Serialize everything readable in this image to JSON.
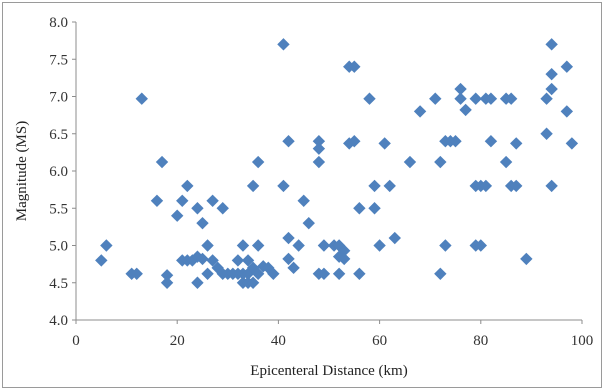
{
  "chart_data": {
    "type": "scatter",
    "title": "",
    "xlabel": "Epicenteral Distance (km)",
    "ylabel": "Magnitude (MS)",
    "xlim": [
      0,
      100
    ],
    "ylim": [
      4.0,
      8.0
    ],
    "x_ticks": [
      "0",
      "20",
      "40",
      "60",
      "80",
      "100"
    ],
    "y_ticks": [
      "4.0",
      "4.5",
      "5.0",
      "5.5",
      "6.0",
      "6.5",
      "7.0",
      "7.5",
      "8.0"
    ],
    "grid": false,
    "legend": "none",
    "marker": "diamond",
    "color": "#4F81BD",
    "series": [
      {
        "points": [
          [
            5,
            4.8
          ],
          [
            6,
            5.0
          ],
          [
            11,
            4.62
          ],
          [
            12,
            4.62
          ],
          [
            13,
            6.97
          ],
          [
            16,
            5.6
          ],
          [
            17,
            6.12
          ],
          [
            18,
            4.6
          ],
          [
            18,
            4.5
          ],
          [
            20,
            5.4
          ],
          [
            21,
            5.6
          ],
          [
            21,
            4.8
          ],
          [
            22,
            5.8
          ],
          [
            22,
            4.8
          ],
          [
            23,
            4.8
          ],
          [
            24,
            5.5
          ],
          [
            24,
            4.5
          ],
          [
            24,
            4.85
          ],
          [
            25,
            5.3
          ],
          [
            25,
            4.82
          ],
          [
            26,
            5.0
          ],
          [
            26,
            4.62
          ],
          [
            27,
            5.6
          ],
          [
            27,
            4.8
          ],
          [
            28,
            4.7
          ],
          [
            29,
            5.5
          ],
          [
            29,
            4.62
          ],
          [
            30,
            4.62
          ],
          [
            31,
            4.62
          ],
          [
            32,
            4.8
          ],
          [
            32,
            4.62
          ],
          [
            33,
            5.0
          ],
          [
            33,
            4.62
          ],
          [
            33,
            4.5
          ],
          [
            34,
            4.5
          ],
          [
            34,
            4.8
          ],
          [
            34,
            4.62
          ],
          [
            35,
            5.8
          ],
          [
            35,
            4.5
          ],
          [
            35,
            4.7
          ],
          [
            36,
            6.12
          ],
          [
            36,
            5.0
          ],
          [
            36,
            4.62
          ],
          [
            37,
            4.72
          ],
          [
            38,
            4.7
          ],
          [
            39,
            4.62
          ],
          [
            41,
            7.7
          ],
          [
            41,
            5.8
          ],
          [
            42,
            6.4
          ],
          [
            42,
            5.1
          ],
          [
            42,
            4.82
          ],
          [
            43,
            4.7
          ],
          [
            44,
            5.0
          ],
          [
            45,
            5.6
          ],
          [
            46,
            5.3
          ],
          [
            48,
            6.4
          ],
          [
            48,
            6.3
          ],
          [
            48,
            6.12
          ],
          [
            48,
            4.62
          ],
          [
            49,
            5.0
          ],
          [
            49,
            4.62
          ],
          [
            51,
            5.0
          ],
          [
            52,
            5.0
          ],
          [
            52,
            4.85
          ],
          [
            52,
            4.62
          ],
          [
            53,
            4.93
          ],
          [
            53,
            4.82
          ],
          [
            54,
            7.4
          ],
          [
            54,
            6.37
          ],
          [
            55,
            7.4
          ],
          [
            55,
            6.4
          ],
          [
            56,
            5.5
          ],
          [
            56,
            4.62
          ],
          [
            58,
            6.97
          ],
          [
            59,
            5.8
          ],
          [
            59,
            5.5
          ],
          [
            60,
            5.0
          ],
          [
            61,
            6.37
          ],
          [
            62,
            5.8
          ],
          [
            63,
            5.1
          ],
          [
            66,
            6.12
          ],
          [
            68,
            6.8
          ],
          [
            71,
            6.97
          ],
          [
            72,
            6.12
          ],
          [
            72,
            4.62
          ],
          [
            73,
            6.4
          ],
          [
            73,
            5.0
          ],
          [
            74,
            6.4
          ],
          [
            75,
            6.4
          ],
          [
            76,
            7.1
          ],
          [
            76,
            6.97
          ],
          [
            77,
            6.82
          ],
          [
            79,
            6.97
          ],
          [
            79,
            5.8
          ],
          [
            79,
            5.0
          ],
          [
            80,
            5.8
          ],
          [
            80,
            5.0
          ],
          [
            81,
            6.97
          ],
          [
            81,
            5.8
          ],
          [
            82,
            6.97
          ],
          [
            82,
            6.4
          ],
          [
            85,
            6.97
          ],
          [
            85,
            6.12
          ],
          [
            86,
            6.97
          ],
          [
            86,
            5.8
          ],
          [
            87,
            6.37
          ],
          [
            87,
            5.8
          ],
          [
            89,
            4.82
          ],
          [
            93,
            6.97
          ],
          [
            93,
            6.5
          ],
          [
            94,
            7.7
          ],
          [
            94,
            7.3
          ],
          [
            94,
            7.1
          ],
          [
            94,
            5.8
          ],
          [
            97,
            7.4
          ],
          [
            97,
            6.8
          ],
          [
            98,
            6.37
          ]
        ]
      }
    ]
  }
}
